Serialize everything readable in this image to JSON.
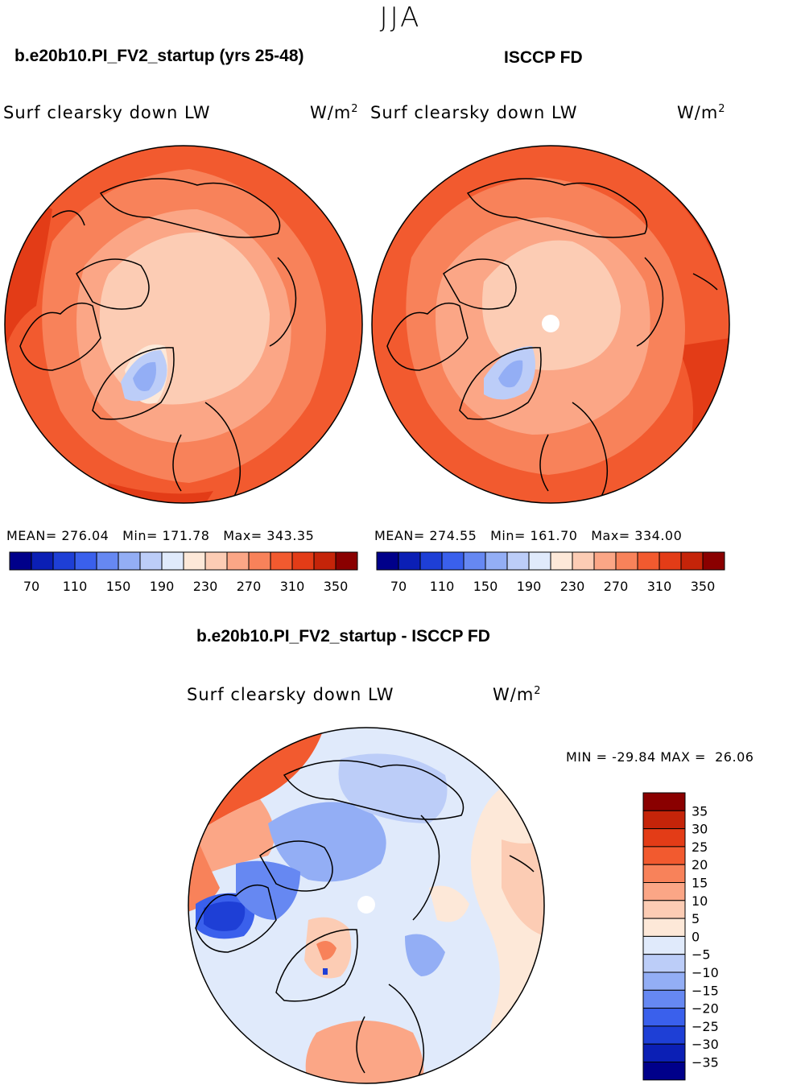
{
  "season": "JJA",
  "panels": [
    {
      "case_title": "b.e20b10.PI_FV2_startup (yrs 25-48)",
      "variable": "Surf clearsky down LW",
      "units_base": "W/m",
      "units_exp": "2",
      "mean_label": "MEAN=",
      "mean": "276.04",
      "min_label": "Min=",
      "min": "171.78",
      "max_label": "Max=",
      "max": "343.35",
      "hole": false
    },
    {
      "case_title": "ISCCP FD",
      "variable": "Surf clearsky down LW",
      "units_base": "W/m",
      "units_exp": "2",
      "mean_label": "MEAN=",
      "mean": "274.55",
      "min_label": "Min=",
      "min": "161.70",
      "max_label": "Max=",
      "max": "334.00",
      "hole": true
    }
  ],
  "abs_colorbar": {
    "colors": [
      "#00008a",
      "#0b1fb5",
      "#1e3fd6",
      "#3a60ec",
      "#6688f2",
      "#93aef5",
      "#bccdf8",
      "#e0eafb",
      "#fde8d8",
      "#fcccb4",
      "#fba686",
      "#f8825a",
      "#f25a2f",
      "#e33c17",
      "#c52409",
      "#8a0000"
    ],
    "tick_labels": [
      "70",
      "110",
      "150",
      "190",
      "230",
      "270",
      "310",
      "350"
    ]
  },
  "difference": {
    "title": "b.e20b10.PI_FV2_startup - ISCCP FD",
    "variable": "Surf clearsky down LW",
    "units_base": "W/m",
    "units_exp": "2",
    "min_label": "MIN =",
    "min": "-29.84",
    "max_label": "MAX =",
    "max": "26.06",
    "colorbar": {
      "colors": [
        "#8a0000",
        "#c52409",
        "#e33c17",
        "#f25a2f",
        "#f8825a",
        "#fba686",
        "#fcccb4",
        "#fde8d8",
        "#e0eafb",
        "#bccdf8",
        "#93aef5",
        "#6688f2",
        "#3a60ec",
        "#1e3fd6",
        "#0b1fb5",
        "#00008a"
      ],
      "tick_labels": [
        "35",
        "30",
        "25",
        "20",
        "15",
        "10",
        "5",
        "0",
        "−5",
        "−10",
        "−15",
        "−20",
        "−25",
        "−30",
        "−35"
      ]
    }
  }
}
